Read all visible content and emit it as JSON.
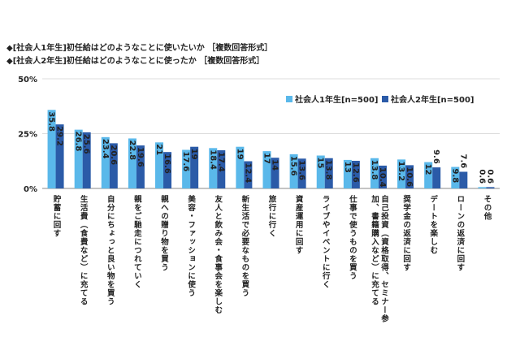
{
  "chart_data": {
    "type": "bar",
    "title_lines": [
      "◆[社会人1年生]初任給はどのようなことに使いたいか ［複数回答形式］",
      "◆[社会人2年生]初任給はどのようなことに使ったか ［複数回答形式］"
    ],
    "categories": [
      "貯蓄に回す",
      "生活費（食費など）に充てる",
      "自分にちょっと良い物を買う",
      "親をご馳走につれていく",
      "親への贈り物を買う",
      "美容・ファッションに使う",
      "友人と飲み会・食事会を楽しむ",
      "新生活で必要なものを買う",
      "旅行に行く",
      "資産運用に回す",
      "ライブやイベントに行く",
      "仕事で使うものを買う",
      "自己投資（資格取得、セミナー参加、書籍購入など）に充てる",
      "奨学金の返済に回す",
      "デートを楽しむ",
      "ローンの返済に回す",
      "その他"
    ],
    "series": [
      {
        "name": "社会人1年生[n=500]",
        "color": "#5ab8ea",
        "values": [
          35.8,
          26.8,
          23.4,
          22.8,
          21.0,
          17.6,
          18.4,
          19.0,
          17.0,
          15.6,
          15.0,
          13.0,
          13.8,
          13.2,
          12.0,
          9.8,
          0.6
        ]
      },
      {
        "name": "社会人2年生[n=500]",
        "color": "#2b5ba8",
        "values": [
          29.2,
          25.6,
          20.6,
          19.6,
          16.6,
          19.0,
          17.4,
          12.4,
          14.0,
          13.6,
          13.8,
          12.6,
          10.4,
          10.6,
          9.6,
          7.6,
          0.6
        ]
      }
    ],
    "ylim": [
      0,
      50
    ],
    "yticks": [
      {
        "value": 0,
        "label": "0%"
      },
      {
        "value": 25,
        "label": "25%"
      },
      {
        "value": 50,
        "label": "50%"
      }
    ],
    "grid": true
  }
}
